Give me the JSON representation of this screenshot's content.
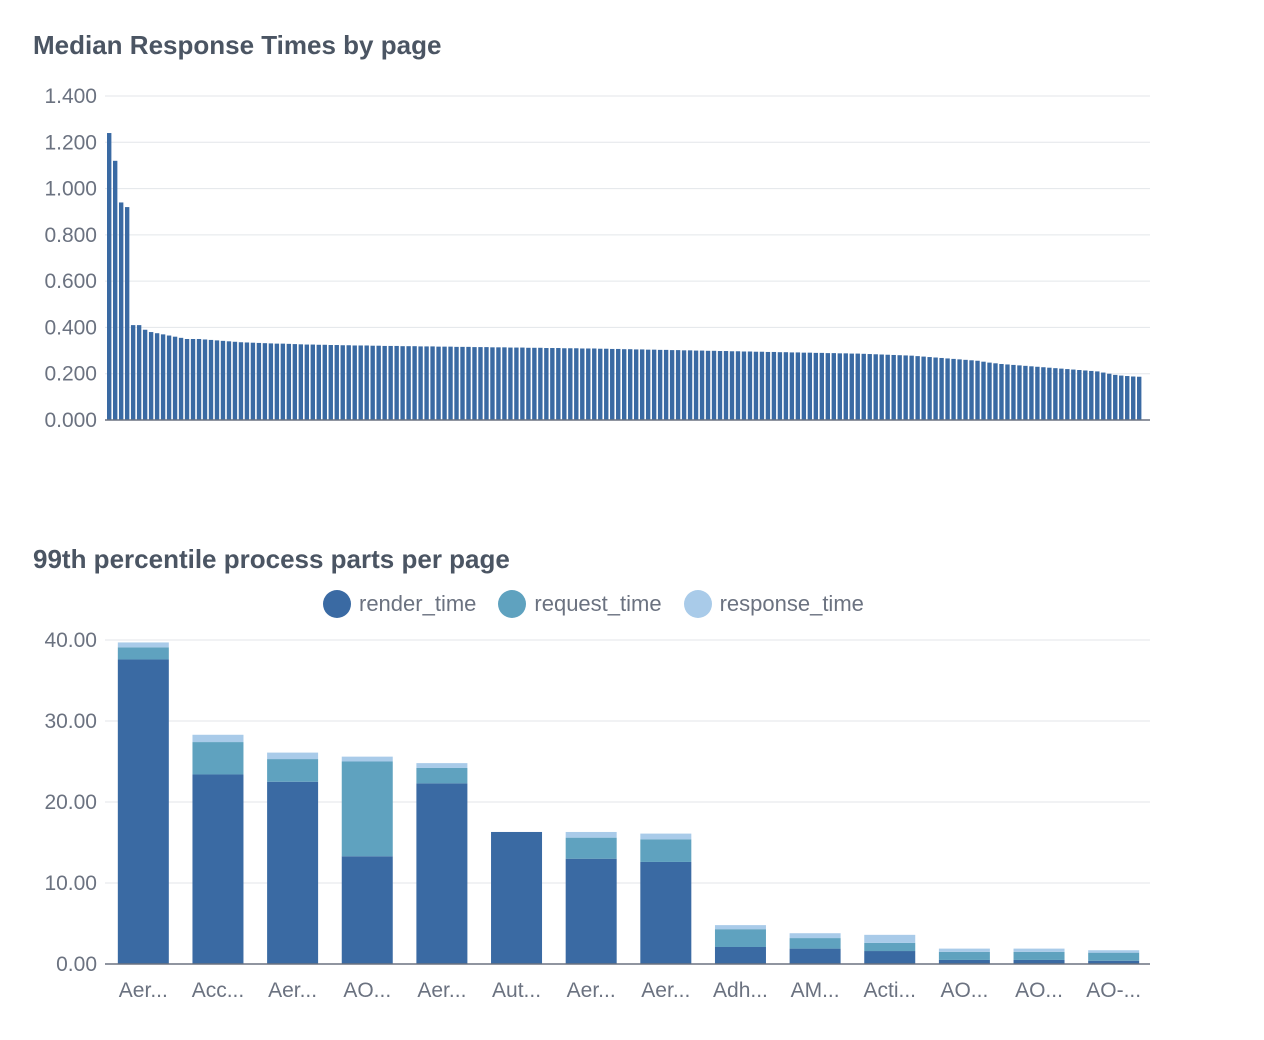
{
  "chart_data": [
    {
      "type": "bar",
      "title": "Median Response Times by page",
      "ylim": [
        0,
        1.4
      ],
      "yticks": [
        "0.000",
        "0.200",
        "0.400",
        "0.600",
        "0.800",
        "1.000",
        "1.200",
        "1.400"
      ],
      "grid": true,
      "color": "#3a6aa3",
      "values": [
        1.24,
        1.12,
        0.94,
        0.92,
        0.41,
        0.41,
        0.39,
        0.38,
        0.375,
        0.37,
        0.365,
        0.36,
        0.355,
        0.35,
        0.35,
        0.35,
        0.348,
        0.346,
        0.344,
        0.342,
        0.34,
        0.338,
        0.336,
        0.335,
        0.334,
        0.333,
        0.332,
        0.331,
        0.33,
        0.33,
        0.329,
        0.328,
        0.327,
        0.326,
        0.326,
        0.325,
        0.325,
        0.324,
        0.324,
        0.323,
        0.323,
        0.322,
        0.322,
        0.322,
        0.321,
        0.321,
        0.32,
        0.32,
        0.32,
        0.319,
        0.319,
        0.319,
        0.318,
        0.318,
        0.318,
        0.317,
        0.317,
        0.317,
        0.316,
        0.316,
        0.316,
        0.315,
        0.315,
        0.315,
        0.314,
        0.314,
        0.314,
        0.313,
        0.313,
        0.313,
        0.312,
        0.312,
        0.312,
        0.311,
        0.311,
        0.311,
        0.31,
        0.31,
        0.31,
        0.309,
        0.309,
        0.309,
        0.308,
        0.308,
        0.307,
        0.307,
        0.306,
        0.306,
        0.305,
        0.305,
        0.304,
        0.304,
        0.303,
        0.303,
        0.302,
        0.302,
        0.301,
        0.301,
        0.3,
        0.3,
        0.299,
        0.299,
        0.298,
        0.298,
        0.297,
        0.297,
        0.296,
        0.296,
        0.295,
        0.295,
        0.294,
        0.294,
        0.293,
        0.293,
        0.292,
        0.292,
        0.291,
        0.291,
        0.29,
        0.29,
        0.289,
        0.289,
        0.288,
        0.288,
        0.287,
        0.287,
        0.286,
        0.285,
        0.284,
        0.283,
        0.282,
        0.281,
        0.28,
        0.279,
        0.278,
        0.276,
        0.274,
        0.272,
        0.27,
        0.268,
        0.266,
        0.264,
        0.262,
        0.26,
        0.258,
        0.256,
        0.252,
        0.248,
        0.245,
        0.242,
        0.24,
        0.238,
        0.236,
        0.234,
        0.232,
        0.23,
        0.228,
        0.226,
        0.224,
        0.222,
        0.22,
        0.218,
        0.216,
        0.214,
        0.212,
        0.21,
        0.205,
        0.2,
        0.195,
        0.192,
        0.19,
        0.188,
        0.187
      ]
    },
    {
      "type": "bar",
      "stacked": true,
      "title": "99th percentile process parts per page",
      "ylim": [
        0,
        40
      ],
      "yticks": [
        "0.00",
        "10.00",
        "20.00",
        "30.00",
        "40.00"
      ],
      "grid": true,
      "legend_position": "top",
      "categories": [
        "Aer...",
        "Acc...",
        "Aer...",
        "AO...",
        "Aer...",
        "Aut...",
        "Aer...",
        "Aer...",
        "Adh...",
        "AM...",
        "Acti...",
        "AO...",
        "AO...",
        "AO-..."
      ],
      "series": [
        {
          "name": "render_time",
          "color": "#3a6aa3",
          "values": [
            37.6,
            23.4,
            22.5,
            13.3,
            22.3,
            16.3,
            13.0,
            12.6,
            2.1,
            1.9,
            1.6,
            0.5,
            0.5,
            0.4
          ]
        },
        {
          "name": "request_time",
          "color": "#5fa2bf",
          "values": [
            1.5,
            4.0,
            2.8,
            11.7,
            1.9,
            0,
            2.6,
            2.8,
            2.2,
            1.3,
            1.0,
            1.0,
            1.0,
            1.0
          ]
        },
        {
          "name": "response_time",
          "color": "#a9cbe9",
          "values": [
            0.6,
            0.9,
            0.8,
            0.6,
            0.6,
            0,
            0.7,
            0.7,
            0.5,
            0.6,
            1.0,
            0.4,
            0.4,
            0.3
          ]
        }
      ]
    }
  ]
}
